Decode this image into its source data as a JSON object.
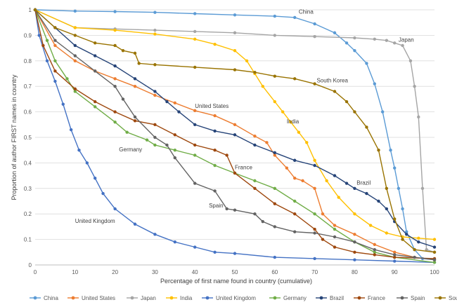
{
  "chart_data": {
    "type": "line",
    "title": "",
    "xlabel": "Percentage of first name found in country (cumulative)",
    "ylabel": "Proportion of author FIRST names in country",
    "xlim": [
      0,
      100
    ],
    "ylim": [
      0,
      1
    ],
    "x_ticks": [
      0,
      10,
      20,
      30,
      40,
      50,
      60,
      70,
      80,
      90,
      100
    ],
    "y_ticks": [
      0,
      0.1,
      0.2,
      0.3,
      0.4,
      0.5,
      0.6,
      0.7,
      0.8,
      0.9,
      1
    ],
    "x_tick_labels": [
      "0",
      "10",
      "20",
      "30",
      "40",
      "50",
      "60",
      "70",
      "80",
      "90",
      "100"
    ],
    "y_tick_labels": [
      "0",
      "0.1",
      "0.2",
      "0.3",
      "0.4",
      "0.5",
      "0.6",
      "0.7",
      "0.8",
      "0.9",
      "1"
    ],
    "grid": "horizontal",
    "legend_position": "bottom",
    "series": [
      {
        "name": "China",
        "color": "#5B9BD5",
        "points": [
          [
            0,
            1
          ],
          [
            10,
            0.995
          ],
          [
            20,
            0.993
          ],
          [
            30,
            0.99
          ],
          [
            40,
            0.985
          ],
          [
            50,
            0.98
          ],
          [
            60,
            0.975
          ],
          [
            65,
            0.97
          ],
          [
            70,
            0.945
          ],
          [
            75,
            0.91
          ],
          [
            78,
            0.87
          ],
          [
            80,
            0.84
          ],
          [
            83,
            0.79
          ],
          [
            85,
            0.71
          ],
          [
            87,
            0.6
          ],
          [
            89,
            0.45
          ],
          [
            90,
            0.38
          ],
          [
            91,
            0.3
          ],
          [
            92,
            0.22
          ],
          [
            93,
            0.13
          ],
          [
            95,
            0.06
          ],
          [
            97,
            0.025
          ],
          [
            100,
            0.02
          ]
        ]
      },
      {
        "name": "United States",
        "color": "#ED7D31",
        "points": [
          [
            0,
            1
          ],
          [
            5,
            0.86
          ],
          [
            10,
            0.8
          ],
          [
            15,
            0.76
          ],
          [
            20,
            0.73
          ],
          [
            25,
            0.7
          ],
          [
            30,
            0.665
          ],
          [
            35,
            0.635
          ],
          [
            40,
            0.605
          ],
          [
            45,
            0.585
          ],
          [
            50,
            0.55
          ],
          [
            55,
            0.505
          ],
          [
            58,
            0.48
          ],
          [
            60,
            0.43
          ],
          [
            63,
            0.38
          ],
          [
            65,
            0.34
          ],
          [
            67,
            0.33
          ],
          [
            70,
            0.3
          ],
          [
            72,
            0.2
          ],
          [
            75,
            0.155
          ],
          [
            80,
            0.12
          ],
          [
            85,
            0.08
          ],
          [
            90,
            0.05
          ],
          [
            95,
            0.03
          ],
          [
            100,
            0.02
          ]
        ]
      },
      {
        "name": "Japan",
        "color": "#A5A5A5",
        "points": [
          [
            0,
            1
          ],
          [
            10,
            0.93
          ],
          [
            20,
            0.925
          ],
          [
            30,
            0.92
          ],
          [
            40,
            0.915
          ],
          [
            50,
            0.91
          ],
          [
            60,
            0.9
          ],
          [
            70,
            0.895
          ],
          [
            80,
            0.89
          ],
          [
            85,
            0.885
          ],
          [
            88,
            0.88
          ],
          [
            90,
            0.87
          ],
          [
            92,
            0.86
          ],
          [
            94,
            0.8
          ],
          [
            95,
            0.7
          ],
          [
            96,
            0.58
          ],
          [
            97,
            0.3
          ],
          [
            98,
            0.06
          ],
          [
            100,
            0.05
          ]
        ]
      },
      {
        "name": "India",
        "color": "#FFC000",
        "points": [
          [
            0,
            1
          ],
          [
            10,
            0.93
          ],
          [
            20,
            0.92
          ],
          [
            30,
            0.905
          ],
          [
            40,
            0.885
          ],
          [
            45,
            0.865
          ],
          [
            50,
            0.84
          ],
          [
            53,
            0.8
          ],
          [
            55,
            0.75
          ],
          [
            57,
            0.7
          ],
          [
            60,
            0.64
          ],
          [
            62,
            0.6
          ],
          [
            64,
            0.56
          ],
          [
            66,
            0.52
          ],
          [
            68,
            0.48
          ],
          [
            70,
            0.41
          ],
          [
            73,
            0.33
          ],
          [
            76,
            0.265
          ],
          [
            80,
            0.2
          ],
          [
            84,
            0.155
          ],
          [
            88,
            0.125
          ],
          [
            92,
            0.11
          ],
          [
            96,
            0.105
          ],
          [
            100,
            0.1
          ]
        ]
      },
      {
        "name": "United Kingdom",
        "color": "#4472C4",
        "points": [
          [
            0,
            1
          ],
          [
            1,
            0.9
          ],
          [
            3,
            0.8
          ],
          [
            5,
            0.72
          ],
          [
            7,
            0.63
          ],
          [
            9,
            0.53
          ],
          [
            11,
            0.45
          ],
          [
            13,
            0.4
          ],
          [
            15,
            0.34
          ],
          [
            17,
            0.28
          ],
          [
            20,
            0.22
          ],
          [
            25,
            0.16
          ],
          [
            30,
            0.12
          ],
          [
            35,
            0.09
          ],
          [
            40,
            0.07
          ],
          [
            45,
            0.05
          ],
          [
            50,
            0.045
          ],
          [
            60,
            0.03
          ],
          [
            70,
            0.025
          ],
          [
            80,
            0.02
          ],
          [
            90,
            0.015
          ],
          [
            100,
            0.01
          ]
        ]
      },
      {
        "name": "Germany",
        "color": "#70AD47",
        "points": [
          [
            0,
            1
          ],
          [
            3,
            0.88
          ],
          [
            5,
            0.8
          ],
          [
            8,
            0.73
          ],
          [
            10,
            0.68
          ],
          [
            15,
            0.62
          ],
          [
            20,
            0.56
          ],
          [
            23,
            0.52
          ],
          [
            28,
            0.49
          ],
          [
            30,
            0.47
          ],
          [
            35,
            0.45
          ],
          [
            40,
            0.43
          ],
          [
            45,
            0.39
          ],
          [
            50,
            0.36
          ],
          [
            55,
            0.33
          ],
          [
            60,
            0.3
          ],
          [
            65,
            0.25
          ],
          [
            70,
            0.2
          ],
          [
            75,
            0.14
          ],
          [
            80,
            0.09
          ],
          [
            85,
            0.05
          ],
          [
            90,
            0.03
          ],
          [
            100,
            0.01
          ]
        ]
      },
      {
        "name": "Brazil",
        "color": "#264478",
        "points": [
          [
            0,
            1
          ],
          [
            5,
            0.93
          ],
          [
            10,
            0.86
          ],
          [
            15,
            0.82
          ],
          [
            20,
            0.78
          ],
          [
            25,
            0.73
          ],
          [
            30,
            0.68
          ],
          [
            33,
            0.64
          ],
          [
            36,
            0.6
          ],
          [
            40,
            0.55
          ],
          [
            45,
            0.525
          ],
          [
            50,
            0.51
          ],
          [
            55,
            0.47
          ],
          [
            60,
            0.44
          ],
          [
            65,
            0.41
          ],
          [
            70,
            0.39
          ],
          [
            75,
            0.35
          ],
          [
            78,
            0.32
          ],
          [
            80,
            0.3
          ],
          [
            83,
            0.28
          ],
          [
            86,
            0.25
          ],
          [
            88,
            0.22
          ],
          [
            90,
            0.17
          ],
          [
            93,
            0.12
          ],
          [
            96,
            0.09
          ],
          [
            100,
            0.07
          ]
        ]
      },
      {
        "name": "France",
        "color": "#9E480E",
        "points": [
          [
            0,
            1
          ],
          [
            2,
            0.86
          ],
          [
            5,
            0.76
          ],
          [
            10,
            0.69
          ],
          [
            15,
            0.64
          ],
          [
            20,
            0.6
          ],
          [
            25,
            0.565
          ],
          [
            30,
            0.55
          ],
          [
            35,
            0.51
          ],
          [
            40,
            0.47
          ],
          [
            45,
            0.45
          ],
          [
            48,
            0.43
          ],
          [
            50,
            0.36
          ],
          [
            55,
            0.3
          ],
          [
            60,
            0.24
          ],
          [
            65,
            0.2
          ],
          [
            70,
            0.14
          ],
          [
            72,
            0.1
          ],
          [
            75,
            0.07
          ],
          [
            80,
            0.05
          ],
          [
            85,
            0.04
          ],
          [
            90,
            0.03
          ],
          [
            100,
            0.025
          ]
        ]
      },
      {
        "name": "Spain",
        "color": "#636363",
        "points": [
          [
            0,
            1
          ],
          [
            5,
            0.88
          ],
          [
            10,
            0.82
          ],
          [
            15,
            0.76
          ],
          [
            20,
            0.7
          ],
          [
            22,
            0.65
          ],
          [
            25,
            0.58
          ],
          [
            30,
            0.5
          ],
          [
            33,
            0.47
          ],
          [
            35,
            0.42
          ],
          [
            40,
            0.32
          ],
          [
            45,
            0.29
          ],
          [
            48,
            0.22
          ],
          [
            50,
            0.215
          ],
          [
            55,
            0.2
          ],
          [
            57,
            0.17
          ],
          [
            60,
            0.15
          ],
          [
            65,
            0.13
          ],
          [
            70,
            0.125
          ],
          [
            75,
            0.11
          ],
          [
            80,
            0.09
          ],
          [
            85,
            0.06
          ],
          [
            90,
            0.04
          ],
          [
            95,
            0.03
          ],
          [
            100,
            0.02
          ]
        ]
      },
      {
        "name": "South Korea",
        "color": "#997300",
        "points": [
          [
            0,
            1
          ],
          [
            5,
            0.93
          ],
          [
            10,
            0.9
          ],
          [
            15,
            0.87
          ],
          [
            20,
            0.86
          ],
          [
            22,
            0.84
          ],
          [
            25,
            0.83
          ],
          [
            26,
            0.79
          ],
          [
            30,
            0.785
          ],
          [
            40,
            0.775
          ],
          [
            50,
            0.765
          ],
          [
            55,
            0.755
          ],
          [
            60,
            0.74
          ],
          [
            65,
            0.73
          ],
          [
            70,
            0.71
          ],
          [
            75,
            0.68
          ],
          [
            78,
            0.64
          ],
          [
            80,
            0.6
          ],
          [
            83,
            0.54
          ],
          [
            86,
            0.45
          ],
          [
            88,
            0.3
          ],
          [
            90,
            0.18
          ],
          [
            92,
            0.1
          ],
          [
            95,
            0.06
          ],
          [
            100,
            0.05
          ]
        ]
      }
    ],
    "annotations": [
      {
        "text": "China",
        "x": 66,
        "y": 0.985
      },
      {
        "text": "Japan",
        "x": 91,
        "y": 0.875
      },
      {
        "text": "South Korea",
        "x": 70.5,
        "y": 0.715
      },
      {
        "text": "United States",
        "x": 40,
        "y": 0.615
      },
      {
        "text": "India",
        "x": 63,
        "y": 0.555
      },
      {
        "text": "Germany",
        "x": 21,
        "y": 0.445
      },
      {
        "text": "France",
        "x": 50,
        "y": 0.375
      },
      {
        "text": "Brazil",
        "x": 80.5,
        "y": 0.315
      },
      {
        "text": "Spain",
        "x": 43.5,
        "y": 0.225
      },
      {
        "text": "United Kingdom",
        "x": 10,
        "y": 0.165
      }
    ]
  }
}
